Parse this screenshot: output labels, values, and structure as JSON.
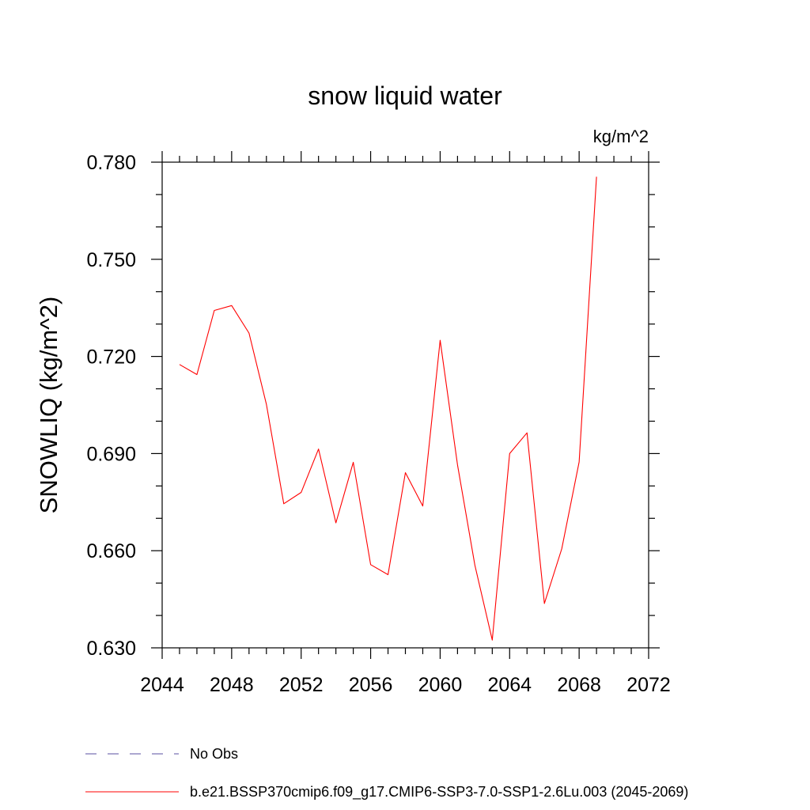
{
  "chart_data": {
    "type": "line",
    "title": "snow liquid water",
    "units_label": "kg/m^2",
    "xlabel": "",
    "ylabel": "SNOWLIQ  (kg/m^2)",
    "xlim": [
      2044,
      2072
    ],
    "ylim": [
      0.63,
      0.78
    ],
    "x_ticks": [
      2044,
      2048,
      2052,
      2056,
      2060,
      2064,
      2068,
      2072
    ],
    "x_tick_labels": [
      "2044",
      "2048",
      "2052",
      "2056",
      "2060",
      "2064",
      "2068",
      "2072"
    ],
    "x_minor_step": 1,
    "y_ticks": [
      0.63,
      0.66,
      0.69,
      0.72,
      0.75,
      0.78
    ],
    "y_tick_labels": [
      "0.630",
      "0.660",
      "0.690",
      "0.720",
      "0.750",
      "0.780"
    ],
    "y_minor_step": 0.01,
    "grid": false,
    "legend_position": "bottom-left",
    "legend": [
      {
        "label": "No Obs",
        "color": "#5a4fa0",
        "style": "dashed"
      },
      {
        "label": "b.e21.BSSP370cmip6.f09_g17.CMIP6-SSP3-7.0-SSP1-2.6Lu.003 (2045-2069)",
        "color": "#ff0000",
        "style": "solid"
      }
    ],
    "series": [
      {
        "name": "b.e21.BSSP370cmip6.f09_g17.CMIP6-SSP3-7.0-SSP1-2.6Lu.003 (2045-2069)",
        "color": "#ff0000",
        "x": [
          2045,
          2046,
          2047,
          2048,
          2049,
          2050,
          2051,
          2052,
          2053,
          2054,
          2055,
          2056,
          2057,
          2058,
          2059,
          2060,
          2061,
          2062,
          2063,
          2064,
          2065,
          2066,
          2067,
          2068,
          2069
        ],
        "y": [
          0.7175,
          0.7144,
          0.7342,
          0.7357,
          0.7272,
          0.7052,
          0.6745,
          0.678,
          0.6914,
          0.6686,
          0.6873,
          0.6557,
          0.6526,
          0.6841,
          0.6738,
          0.725,
          0.6865,
          0.6555,
          0.6324,
          0.69,
          0.6964,
          0.6437,
          0.6606,
          0.6874,
          0.7755
        ]
      }
    ]
  }
}
